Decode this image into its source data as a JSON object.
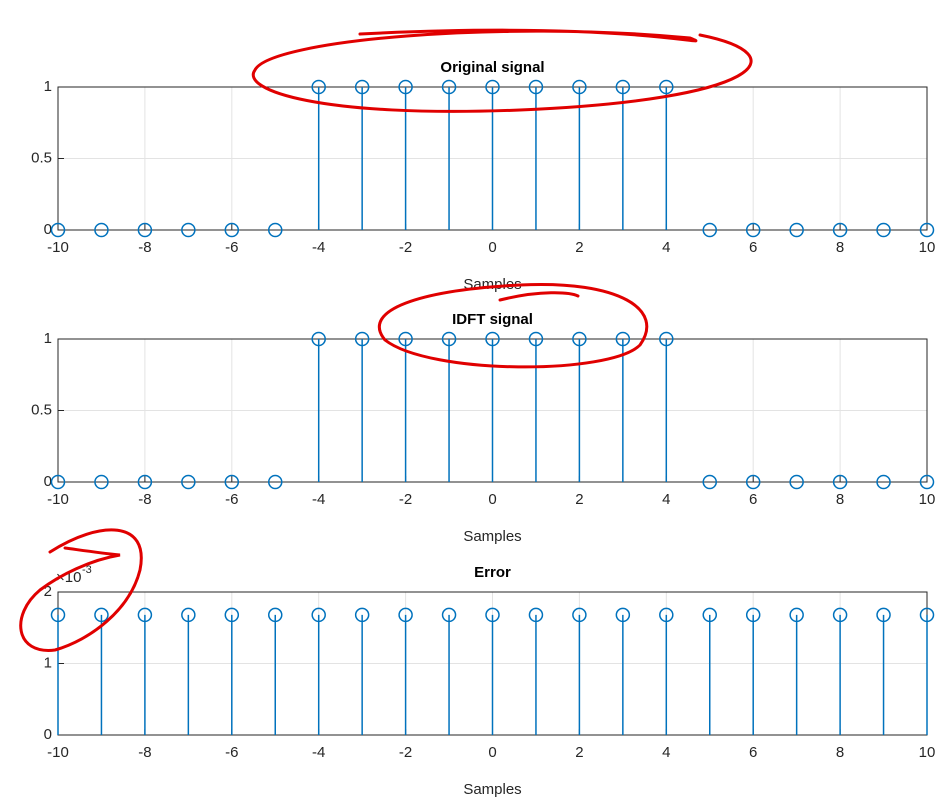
{
  "chart_data": [
    {
      "type": "stem",
      "title": "Original signal",
      "xlabel": "Samples",
      "x": [
        -10,
        -9,
        -8,
        -7,
        -6,
        -5,
        -4,
        -3,
        -2,
        -1,
        0,
        1,
        2,
        3,
        4,
        5,
        6,
        7,
        8,
        9,
        10
      ],
      "values": [
        0,
        0,
        0,
        0,
        0,
        0,
        1,
        1,
        1,
        1,
        1,
        1,
        1,
        1,
        1,
        0,
        0,
        0,
        0,
        0,
        0
      ],
      "color": "#0072bd",
      "xlim": [
        -10,
        10
      ],
      "ylim": [
        0,
        1
      ],
      "xticks": [
        -10,
        -8,
        -6,
        -4,
        -2,
        0,
        2,
        4,
        6,
        8,
        10
      ],
      "yticks": [
        0,
        0.5,
        1
      ],
      "grid": true
    },
    {
      "type": "stem",
      "title": "IDFT signal",
      "xlabel": "Samples",
      "x": [
        -10,
        -9,
        -8,
        -7,
        -6,
        -5,
        -4,
        -3,
        -2,
        -1,
        0,
        1,
        2,
        3,
        4,
        5,
        6,
        7,
        8,
        9,
        10
      ],
      "values": [
        0,
        0,
        0,
        0,
        0,
        0,
        1,
        1,
        1,
        1,
        1,
        1,
        1,
        1,
        1,
        0,
        0,
        0,
        0,
        0,
        0
      ],
      "color": "#0072bd",
      "xlim": [
        -10,
        10
      ],
      "ylim": [
        0,
        1
      ],
      "xticks": [
        -10,
        -8,
        -6,
        -4,
        -2,
        0,
        2,
        4,
        6,
        8,
        10
      ],
      "yticks": [
        0,
        0.5,
        1
      ],
      "grid": true
    },
    {
      "type": "stem",
      "title": "Error",
      "xlabel": "Samples",
      "y_multiplier_base": "×10",
      "y_multiplier_exponent": "-3",
      "x": [
        -10,
        -9,
        -8,
        -7,
        -6,
        -5,
        -4,
        -3,
        -2,
        -1,
        0,
        1,
        2,
        3,
        4,
        5,
        6,
        7,
        8,
        9,
        10
      ],
      "values": [
        0.00168,
        0.00168,
        0.00168,
        0.00168,
        0.00168,
        0.00168,
        0.00168,
        0.00168,
        0.00168,
        0.00168,
        0.00168,
        0.00168,
        0.00168,
        0.00168,
        0.00168,
        0.00168,
        0.00168,
        0.00168,
        0.00168,
        0.00168,
        0.00168
      ],
      "color": "#0072bd",
      "xlim": [
        -10,
        10
      ],
      "ylim": [
        0,
        0.002
      ],
      "xticks": [
        -10,
        -8,
        -6,
        -4,
        -2,
        0,
        2,
        4,
        6,
        8,
        10
      ],
      "yticks": [
        0,
        {
          "value": 0.001,
          "label": "1"
        },
        {
          "value": 0.002,
          "label": "2"
        }
      ],
      "grid": true
    }
  ]
}
